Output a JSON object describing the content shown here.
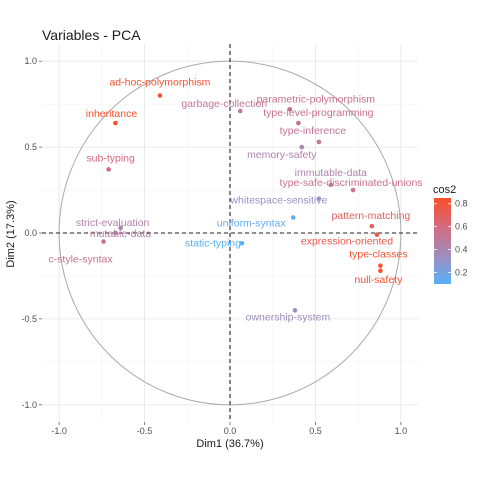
{
  "chart_data": {
    "type": "scatter",
    "title": "Variables - PCA",
    "xlabel": "Dim1 (36.7%)",
    "ylabel": "Dim2 (17.3%)",
    "xlim": [
      -1.1,
      1.1
    ],
    "ylim": [
      -1.1,
      1.1
    ],
    "x_ticks": [
      -1.0,
      -0.5,
      0.0,
      0.5,
      1.0
    ],
    "y_ticks": [
      -1.0,
      -0.5,
      0.0,
      0.5,
      1.0
    ],
    "x_tick_labels": [
      "-1.0",
      "-0.5",
      "0.0",
      "0.5",
      "1.0"
    ],
    "y_tick_labels": [
      "-1.0",
      "-0.5",
      "0.0",
      "0.5",
      "1.0"
    ],
    "grid": true,
    "unit_circle": true,
    "legend": {
      "title": "cos2",
      "placement": "right",
      "ticks": [
        0.2,
        0.4,
        0.6,
        0.8
      ],
      "tick_labels": [
        "0.2",
        "0.4",
        "0.6",
        "0.8"
      ],
      "range": [
        0.1,
        0.85
      ],
      "gradient": [
        "#56B1F7",
        "#A08DBE",
        "#D46A7E",
        "#FC4E2A"
      ]
    },
    "points": [
      {
        "label": "ad-hoc-polymorphism",
        "x": -0.41,
        "y": 0.8,
        "cos2": 0.82
      },
      {
        "label": "garbage-collection",
        "x": 0.06,
        "y": 0.71,
        "cos2": 0.5
      },
      {
        "label": "parametric-polymorphism",
        "x": 0.35,
        "y": 0.72,
        "cos2": 0.55
      },
      {
        "label": "inheritance",
        "x": -0.67,
        "y": 0.64,
        "cos2": 0.85
      },
      {
        "label": "type-level-programming",
        "x": 0.4,
        "y": 0.64,
        "cos2": 0.55
      },
      {
        "label": "type-inference",
        "x": 0.52,
        "y": 0.53,
        "cos2": 0.52
      },
      {
        "label": "memory-safety",
        "x": 0.42,
        "y": 0.5,
        "cos2": 0.42
      },
      {
        "label": "sub-typing",
        "x": -0.71,
        "y": 0.37,
        "cos2": 0.6
      },
      {
        "label": "immutable-data",
        "x": 0.59,
        "y": 0.28,
        "cos2": 0.42
      },
      {
        "label": "type-safe-discriminated-unions",
        "x": 0.72,
        "y": 0.25,
        "cos2": 0.55
      },
      {
        "label": "whitespace-sensitive",
        "x": 0.52,
        "y": 0.2,
        "cos2": 0.32
      },
      {
        "label": "pattern-matching",
        "x": 0.83,
        "y": 0.04,
        "cos2": 0.7
      },
      {
        "label": "strict-evaluation",
        "x": -0.64,
        "y": 0.03,
        "cos2": 0.42
      },
      {
        "label": "uniform-syntax",
        "x": 0.37,
        "y": 0.09,
        "cos2": 0.14
      },
      {
        "label": "mutable-data",
        "x": -0.67,
        "y": 0.0,
        "cos2": 0.45
      },
      {
        "label": "expression-oriented",
        "x": 0.86,
        "y": -0.01,
        "cos2": 0.75
      },
      {
        "label": "static-typing",
        "x": 0.07,
        "y": -0.06,
        "cos2": 0.05
      },
      {
        "label": "c-style-syntax",
        "x": -0.74,
        "y": -0.05,
        "cos2": 0.55
      },
      {
        "label": "type-classes",
        "x": 0.88,
        "y": -0.19,
        "cos2": 0.82
      },
      {
        "label": "null-safety",
        "x": 0.88,
        "y": -0.22,
        "cos2": 0.83
      },
      {
        "label": "ownership-system",
        "x": 0.38,
        "y": -0.45,
        "cos2": 0.35
      }
    ]
  }
}
